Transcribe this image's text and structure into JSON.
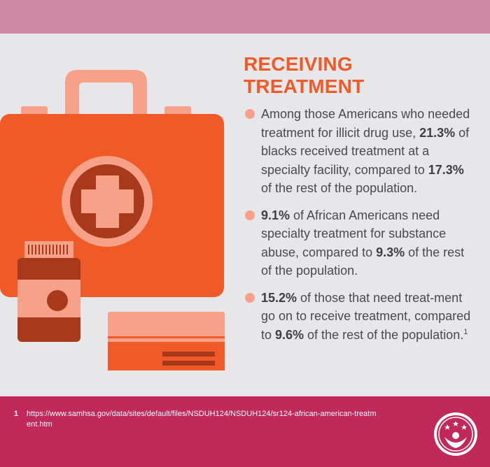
{
  "heading": {
    "line1": "RECEIVING",
    "line2": "TREATMENT"
  },
  "bullets": [
    {
      "text_before_1": "Among those Americans who needed treatment for illicit drug use, ",
      "stat1": "21.3%",
      "text_mid": " of blacks received treatment at a specialty facility, compared to ",
      "stat2": "17.3%",
      "text_after": "  of the rest of the population."
    },
    {
      "stat1": "9.1%",
      "text_mid": " of African Americans need specialty treatment for substance abuse, compared to ",
      "stat2": "9.3%",
      "text_after": " of the rest of the population."
    },
    {
      "stat1": "15.2%",
      "text_mid": " of those that need treat-ment go on to receive treatment, compared to ",
      "stat2": "9.6%",
      "text_after": " of the rest of the population.",
      "footnote_marker": "1"
    }
  ],
  "footnote": {
    "number": "1",
    "url": "https://www.samhsa.gov/data/sites/default/files/NSDUH124/NSDUH124/sr124-african-american-treatment.htm"
  },
  "colors": {
    "accent_orange": "#f05a28",
    "light_orange": "#f6a188",
    "dark_brown": "#a8391b",
    "top_band": "#cf8aa3",
    "bottom_band": "#c1295a",
    "background": "#e7e7e9"
  },
  "icons": [
    "first-aid-kit-icon",
    "pill-bottle-icon",
    "credit-card-icon",
    "organization-logo-icon"
  ]
}
